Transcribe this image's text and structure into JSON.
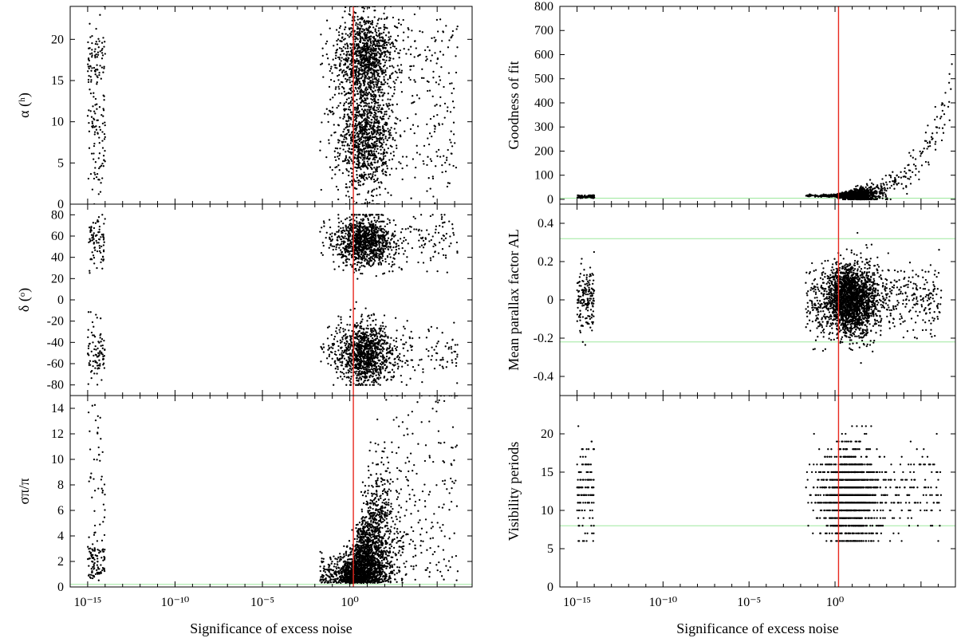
{
  "chart_data": [
    {
      "id": "ra",
      "type": "scatter",
      "ylabel": "α (ʰ)",
      "x_scale": "log",
      "xlim": [
        1e-16,
        10000000.0
      ],
      "ylim": [
        0,
        24
      ],
      "xticks": [
        "10⁻¹⁵",
        "10⁻¹⁰",
        "10⁻⁵",
        "10⁰"
      ],
      "yticks": [
        "0",
        "5",
        "10",
        "15",
        "20"
      ],
      "threshold_x": 1.6,
      "reference_lines_y": [],
      "series": [
        {
          "groups": [
            {
              "x": [
                1e-15,
                1e-14
              ],
              "y": [
                0,
                24
              ],
              "n": 170
            },
            {
              "x": [
                0.02,
                1500000.0
              ],
              "y": [
                0,
                24
              ],
              "n": 2400
            }
          ]
        }
      ]
    },
    {
      "id": "dec",
      "type": "scatter",
      "ylabel": "δ (ᵒ)",
      "x_scale": "log",
      "xlim": [
        1e-16,
        10000000.0
      ],
      "ylim": [
        -90,
        90
      ],
      "xticks": [
        "10⁻¹⁵",
        "10⁻¹⁰",
        "10⁻⁵",
        "10⁰"
      ],
      "yticks": [
        "-80",
        "-60",
        "-40",
        "-20",
        "0",
        "20",
        "40",
        "60",
        "80"
      ],
      "threshold_x": 1.6,
      "reference_lines_y": [],
      "series": [
        {
          "groups": [
            {
              "x": [
                1e-15,
                1e-14
              ],
              "y": [
                -80,
                80
              ],
              "n": 170
            },
            {
              "x": [
                0.02,
                1500000.0
              ],
              "y": [
                -80,
                80
              ],
              "n": 2400
            }
          ]
        }
      ]
    },
    {
      "id": "rel-parallax-error",
      "type": "scatter",
      "ylabel": "σπ/π",
      "x_scale": "log",
      "xlim": [
        1e-16,
        10000000.0
      ],
      "ylim": [
        0,
        15
      ],
      "xticks": [
        "10⁻¹⁵",
        "10⁻¹⁰",
        "10⁻⁵",
        "10⁰"
      ],
      "xlabel": "Significance of excess noise",
      "yticks": [
        "0",
        "2",
        "4",
        "6",
        "8",
        "10",
        "12",
        "14"
      ],
      "threshold_x": 1.6,
      "reference_lines_y": [
        0.2
      ],
      "series": [
        {
          "groups": [
            {
              "x": [
                1e-15,
                1e-14
              ],
              "y": [
                0.5,
                15
              ],
              "n": 140
            },
            {
              "x": [
                0.02,
                1500000.0
              ],
              "y": [
                0.3,
                15
              ],
              "n": 2600
            }
          ]
        }
      ]
    },
    {
      "id": "goodness-of-fit",
      "type": "scatter",
      "ylabel": "Goodness of fit",
      "x_scale": "log",
      "xlim": [
        1e-16,
        10000000.0
      ],
      "ylim": [
        -20,
        800
      ],
      "xticks": [
        "10⁻¹⁵",
        "10⁻¹⁰",
        "10⁻⁵",
        "10⁰"
      ],
      "yticks": [
        "0",
        "100",
        "200",
        "300",
        "400",
        "500",
        "600",
        "700",
        "800"
      ],
      "threshold_x": 1.6,
      "reference_lines_y": [
        5
      ],
      "series": [
        {
          "groups": [
            {
              "x": [
                1e-15,
                1e-14
              ],
              "y": [
                0,
                20
              ],
              "n": 80
            },
            {
              "x": [
                0.02,
                8000000.0
              ],
              "y": [
                0,
                780
              ],
              "n": 1400
            }
          ]
        }
      ]
    },
    {
      "id": "mean-parallax-factor",
      "type": "scatter",
      "ylabel": "Mean parallax factor AL",
      "x_scale": "log",
      "xlim": [
        1e-16,
        10000000.0
      ],
      "ylim": [
        -0.5,
        0.5
      ],
      "xticks": [
        "10⁻¹⁵",
        "10⁻¹⁰",
        "10⁻⁵",
        "10⁰"
      ],
      "yticks": [
        "-0.4",
        "-0.2",
        "0",
        "0.2",
        "0.4"
      ],
      "threshold_x": 1.6,
      "reference_lines_y": [
        0.32,
        -0.22
      ],
      "series": [
        {
          "groups": [
            {
              "x": [
                1e-15,
                1e-14
              ],
              "y": [
                -0.25,
                0.25
              ],
              "n": 170
            },
            {
              "x": [
                0.02,
                1500000.0
              ],
              "y": [
                -0.4,
                0.35
              ],
              "n": 2600
            }
          ]
        }
      ]
    },
    {
      "id": "visibility-periods",
      "type": "scatter",
      "ylabel": "Visibility periods",
      "x_scale": "log",
      "xlim": [
        1e-16,
        10000000.0
      ],
      "ylim": [
        0,
        25
      ],
      "xticks": [
        "10⁻¹⁵",
        "10⁻¹⁰",
        "10⁻⁵",
        "10⁰"
      ],
      "xlabel": "Significance of excess noise",
      "yticks": [
        "0",
        "5",
        "10",
        "15",
        "20"
      ],
      "threshold_x": 1.6,
      "reference_lines_y": [
        8
      ],
      "series": [
        {
          "groups": [
            {
              "x": [
                1e-15,
                1e-14
              ],
              "y": [
                6,
                21
              ],
              "n": 120
            },
            {
              "x": [
                0.02,
                1500000.0
              ],
              "y": [
                6,
                21
              ],
              "n": 1600
            }
          ]
        }
      ]
    }
  ],
  "colors": {
    "points": "#000000",
    "threshold_line": "#e8281e",
    "reference_line": "#9ee89e",
    "axes": "#000000"
  }
}
